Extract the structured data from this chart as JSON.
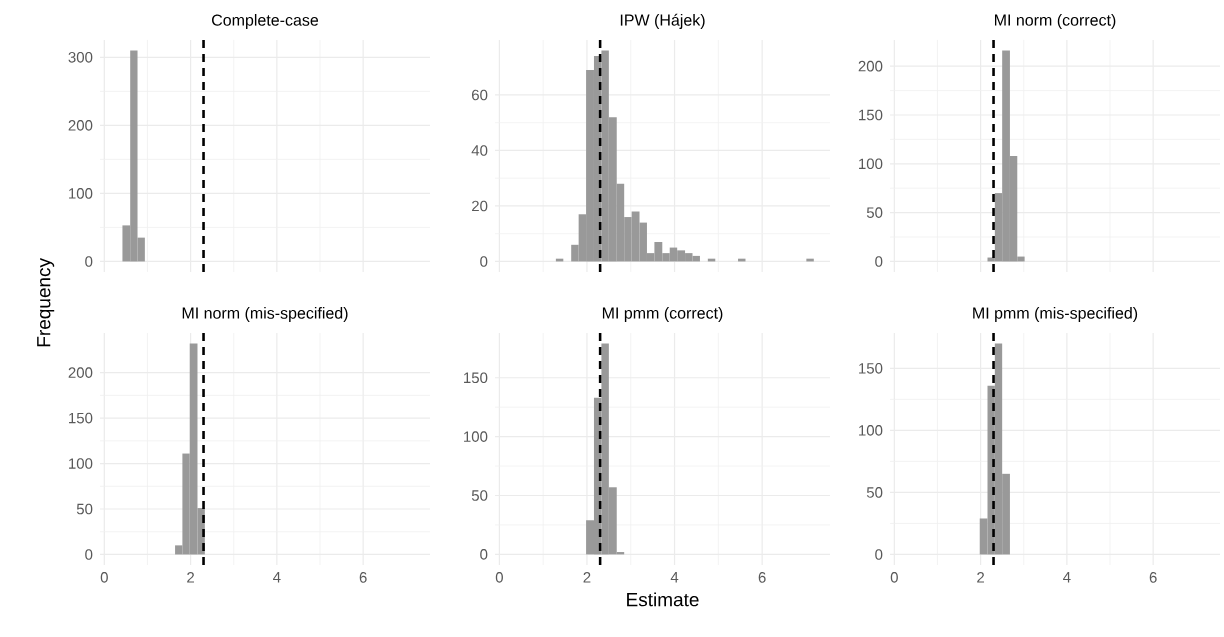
{
  "chart_data": [
    {
      "type": "histogram",
      "title": "Complete-case",
      "bins": [
        0.42,
        0.6,
        0.77,
        0.94
      ],
      "values": [
        53,
        310,
        35
      ],
      "color": "#999999",
      "xlim": [
        -0.1,
        7.55
      ],
      "xticks": [
        0,
        2,
        4,
        6
      ],
      "ylim": [
        -15.5,
        325.5
      ],
      "yticks": [
        0,
        100,
        200,
        300
      ],
      "grid": true,
      "tick_labels": "y",
      "ref_lines": [
        {
          "axis": "x",
          "value": 2.3,
          "color": "#000000",
          "line_style": "dashed"
        }
      ]
    },
    {
      "type": "histogram",
      "title": "IPW (Hájek)",
      "bins": [
        1.29,
        1.46,
        1.64,
        1.81,
        1.98,
        2.16,
        2.33,
        2.5,
        2.68,
        2.85,
        3.02,
        3.2,
        3.37,
        3.54,
        3.72,
        3.89,
        4.06,
        4.24,
        4.41,
        4.58,
        4.76,
        4.93,
        5.1,
        5.28,
        5.45,
        5.62,
        5.8,
        5.97,
        6.14,
        6.32,
        6.49,
        6.67,
        6.84,
        7.01,
        7.18
      ],
      "values": [
        1,
        0,
        6,
        17,
        69,
        74,
        76,
        52,
        28,
        16,
        18,
        14,
        3,
        7,
        3,
        5,
        4,
        3,
        2,
        0,
        1,
        0,
        0,
        0,
        1,
        0,
        0,
        0,
        0,
        0,
        0,
        0,
        0,
        1
      ],
      "color": "#999999",
      "xlim": [
        -0.1,
        7.55
      ],
      "xticks": [
        0,
        2,
        4,
        6
      ],
      "ylim": [
        -3.8,
        79.8
      ],
      "yticks": [
        0,
        20,
        40,
        60
      ],
      "grid": true,
      "tick_labels": "y",
      "ref_lines": [
        {
          "axis": "x",
          "value": 2.3,
          "color": "#000000",
          "line_style": "dashed"
        }
      ]
    },
    {
      "type": "histogram",
      "title": "MI norm (correct)",
      "bins": [
        2.16,
        2.33,
        2.5,
        2.68,
        2.85,
        3.02
      ],
      "values": [
        4,
        70,
        216,
        108,
        5
      ],
      "color": "#999999",
      "xlim": [
        -0.1,
        7.55
      ],
      "xticks": [
        0,
        2,
        4,
        6
      ],
      "ylim": [
        -10.8,
        226.8
      ],
      "yticks": [
        0,
        50,
        100,
        150,
        200
      ],
      "grid": true,
      "tick_labels": "y",
      "ref_lines": [
        {
          "axis": "x",
          "value": 2.3,
          "color": "#000000",
          "line_style": "dashed"
        }
      ]
    },
    {
      "type": "histogram",
      "title": "MI norm (mis-specified)",
      "ylabel": "Frequency",
      "bins": [
        1.64,
        1.81,
        1.98,
        2.16,
        2.33
      ],
      "values": [
        10,
        111,
        232,
        51
      ],
      "color": "#999999",
      "xlim": [
        -0.1,
        7.55
      ],
      "xticks": [
        0,
        2,
        4,
        6
      ],
      "ylim": [
        -11.6,
        243.6
      ],
      "yticks": [
        0,
        50,
        100,
        150,
        200
      ],
      "grid": true,
      "ref_lines": [
        {
          "axis": "x",
          "value": 2.3,
          "color": "#000000",
          "line_style": "dashed"
        }
      ]
    },
    {
      "type": "histogram",
      "title": "MI pmm (correct)",
      "xlabel": "Estimate",
      "bins": [
        1.98,
        2.16,
        2.33,
        2.5,
        2.68,
        2.85
      ],
      "values": [
        29,
        133,
        179,
        57,
        2
      ],
      "color": "#999999",
      "xlim": [
        -0.1,
        7.55
      ],
      "xticks": [
        0,
        2,
        4,
        6
      ],
      "ylim": [
        -9,
        188
      ],
      "yticks": [
        0,
        50,
        100,
        150
      ],
      "grid": true,
      "ref_lines": [
        {
          "axis": "x",
          "value": 2.3,
          "color": "#000000",
          "line_style": "dashed"
        }
      ]
    },
    {
      "type": "histogram",
      "title": "MI pmm (mis-specified)",
      "bins": [
        1.98,
        2.16,
        2.33,
        2.5,
        2.68
      ],
      "values": [
        29,
        136,
        170,
        65
      ],
      "color": "#999999",
      "xlim": [
        -0.1,
        7.55
      ],
      "xticks": [
        0,
        2,
        4,
        6
      ],
      "ylim": [
        -8.5,
        178.5
      ],
      "yticks": [
        0,
        50,
        100,
        150
      ],
      "grid": true,
      "ref_lines": [
        {
          "axis": "x",
          "value": 2.3,
          "color": "#000000",
          "line_style": "dashed"
        }
      ]
    }
  ]
}
